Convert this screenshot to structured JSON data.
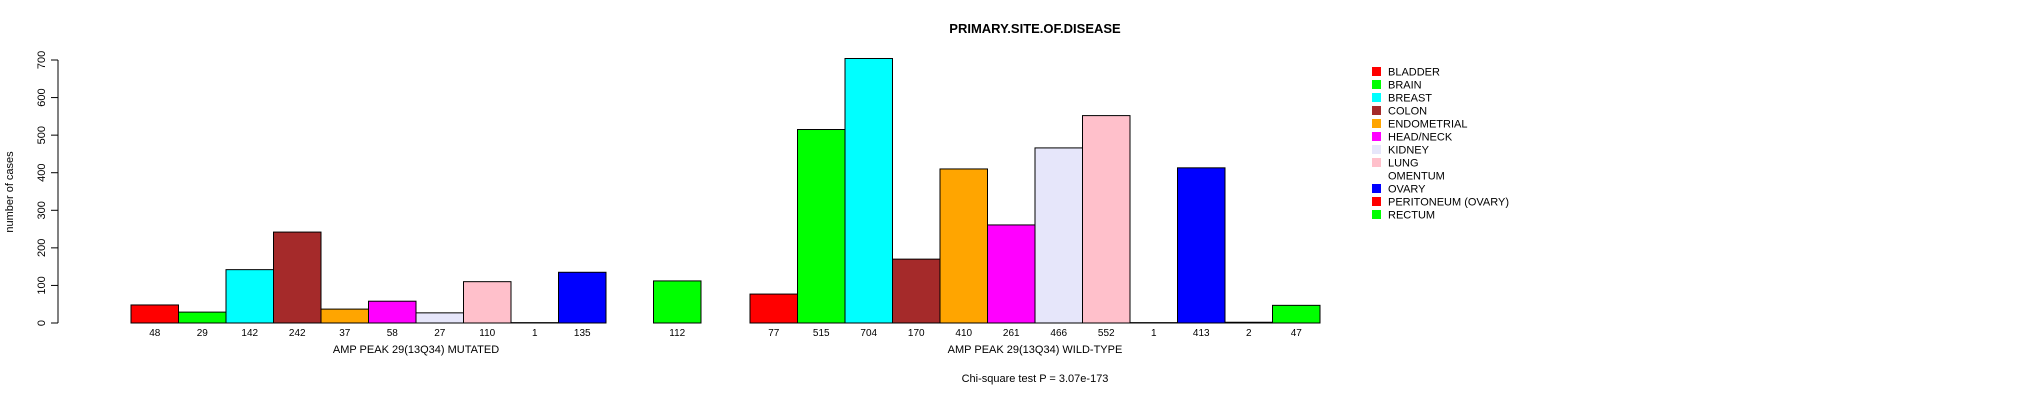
{
  "chart_data": {
    "type": "bar",
    "title": "PRIMARY.SITE.OF.DISEASE",
    "ylabel": "number of cases",
    "ylim": [
      0,
      700
    ],
    "yticks": [
      0,
      100,
      200,
      300,
      400,
      500,
      600,
      700
    ],
    "categories": [
      "BLADDER",
      "BRAIN",
      "BREAST",
      "COLON",
      "ENDOMETRIAL",
      "HEAD/NECK",
      "KIDNEY",
      "LUNG",
      "OMENTUM",
      "OVARY",
      "PERITONEUM (OVARY)",
      "RECTUM"
    ],
    "colors": [
      "#ff0000",
      "#00ff00",
      "#00ffff",
      "#a52a2a",
      "#ffa500",
      "#ff00ff",
      "#e6e6fa",
      "#ffc0cb",
      "#ffffff",
      "#0000ff",
      "#ff0000",
      "#00ff00"
    ],
    "series": [
      {
        "name": "AMP PEAK 29(13Q34) MUTATED",
        "values": [
          48,
          29,
          142,
          242,
          37,
          58,
          27,
          110,
          1,
          135,
          null,
          112
        ],
        "count_labels": [
          "48",
          "29",
          "142",
          "242",
          "37",
          "58",
          "27",
          "110",
          "1",
          "135",
          "",
          "112"
        ]
      },
      {
        "name": "AMP PEAK 29(13Q34) WILD-TYPE",
        "values": [
          77,
          515,
          704,
          170,
          410,
          261,
          466,
          552,
          1,
          413,
          2,
          47
        ],
        "count_labels": [
          "77",
          "515",
          "704",
          "170",
          "410",
          "261",
          "466",
          "552",
          "1",
          "413",
          "2",
          "47"
        ]
      }
    ],
    "legend_position": "right",
    "annotation": "Chi-square test P = 3.07e-173"
  }
}
